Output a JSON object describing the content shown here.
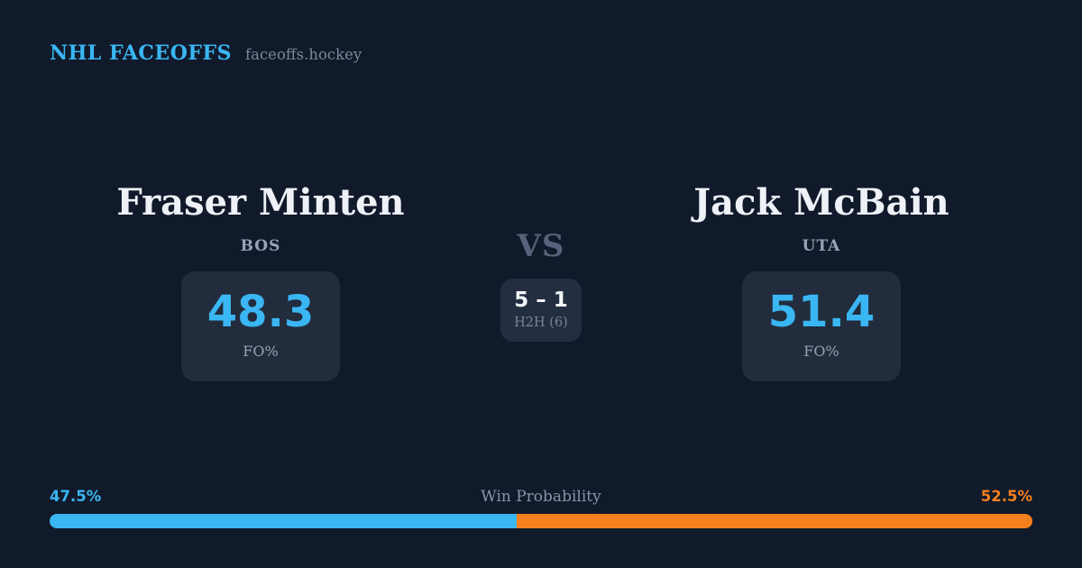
{
  "header": {
    "brand": "NHL FACEOFFS",
    "site": "faceoffs.hockey"
  },
  "players": [
    {
      "name": "Fraser Minten",
      "team": "BOS",
      "fo_pct": "48.3",
      "fo_label": "FO%"
    },
    {
      "name": "Jack McBain",
      "team": "UTA",
      "fo_pct": "51.4",
      "fo_label": "FO%"
    }
  ],
  "matchup": {
    "vs_label": "VS",
    "h2h_score": "5 – 1",
    "h2h_label": "H2H (6)"
  },
  "win_probability": {
    "title": "Win Probability",
    "left_label": "47.5%",
    "right_label": "52.5%",
    "left_pct": 47.5,
    "right_pct": 52.5
  },
  "colors": {
    "background": "#111a2b",
    "panel": "#222c3d",
    "accent_blue": "#3ab6f3",
    "accent_orange": "#f5801e",
    "text_primary": "#eef1f6",
    "text_muted": "#8b94a6"
  }
}
